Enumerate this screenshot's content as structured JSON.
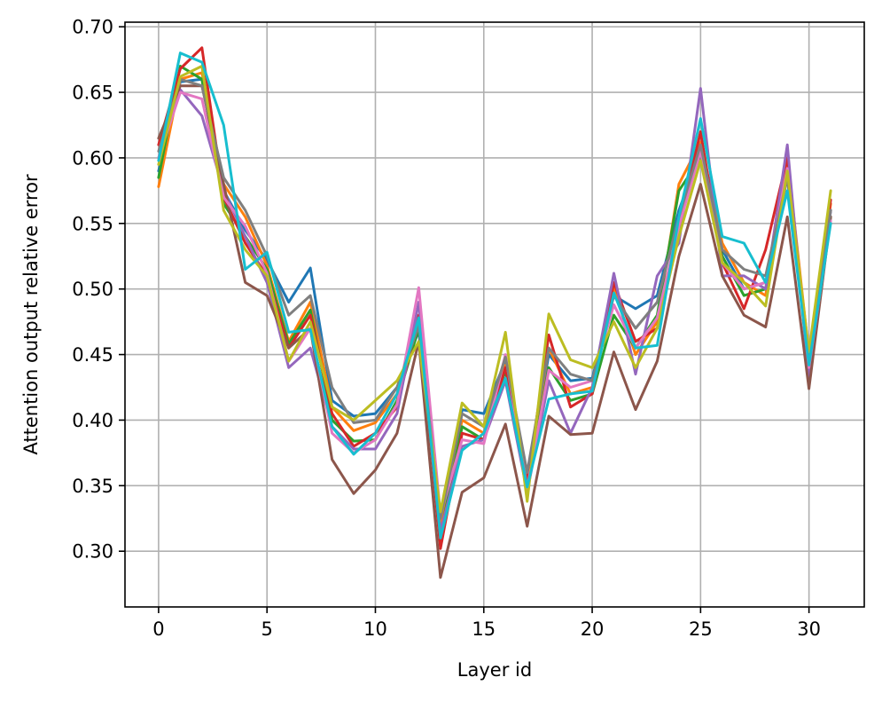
{
  "chart_data": {
    "type": "line",
    "title": "",
    "xlabel": "Layer id",
    "ylabel": "Attention output relative error",
    "xlim": [
      -1.55,
      32.55
    ],
    "ylim": [
      0.2575,
      0.7035
    ],
    "xticks": [
      0,
      5,
      10,
      15,
      20,
      25,
      30
    ],
    "yticks": [
      0.3,
      0.35,
      0.4,
      0.45,
      0.5,
      0.55,
      0.6,
      0.65,
      0.7
    ],
    "grid": true,
    "legend": "none",
    "x": [
      0,
      1,
      2,
      3,
      4,
      5,
      6,
      7,
      8,
      9,
      10,
      11,
      12,
      13,
      14,
      15,
      16,
      17,
      18,
      19,
      20,
      21,
      22,
      23,
      24,
      25,
      26,
      27,
      28,
      29,
      30,
      31
    ],
    "series": [
      {
        "color": "#1f77b4",
        "values": [
          0.59,
          0.658,
          0.66,
          0.575,
          0.545,
          0.522,
          0.49,
          0.516,
          0.415,
          0.403,
          0.405,
          0.425,
          0.468,
          0.318,
          0.408,
          0.405,
          0.445,
          0.355,
          0.45,
          0.43,
          0.432,
          0.495,
          0.485,
          0.495,
          0.56,
          0.605,
          0.53,
          0.5,
          0.505,
          0.585,
          0.445,
          0.56
        ]
      },
      {
        "color": "#ff7f0e",
        "values": [
          0.578,
          0.66,
          0.665,
          0.58,
          0.555,
          0.518,
          0.46,
          0.49,
          0.41,
          0.392,
          0.398,
          0.42,
          0.475,
          0.322,
          0.4,
          0.39,
          0.442,
          0.352,
          0.455,
          0.42,
          0.425,
          0.5,
          0.45,
          0.475,
          0.58,
          0.612,
          0.535,
          0.505,
          0.495,
          0.6,
          0.45,
          0.565
        ]
      },
      {
        "color": "#2ca02c",
        "values": [
          0.585,
          0.67,
          0.66,
          0.565,
          0.54,
          0.515,
          0.458,
          0.484,
          0.4,
          0.384,
          0.385,
          0.415,
          0.47,
          0.312,
          0.395,
          0.385,
          0.438,
          0.35,
          0.44,
          0.415,
          0.42,
          0.48,
          0.455,
          0.48,
          0.575,
          0.6,
          0.525,
          0.495,
          0.5,
          0.59,
          0.44,
          0.555
        ]
      },
      {
        "color": "#d62728",
        "values": [
          0.61,
          0.668,
          0.684,
          0.57,
          0.535,
          0.51,
          0.455,
          0.48,
          0.405,
          0.38,
          0.39,
          0.41,
          0.48,
          0.302,
          0.39,
          0.385,
          0.44,
          0.352,
          0.465,
          0.41,
          0.42,
          0.505,
          0.46,
          0.47,
          0.55,
          0.62,
          0.52,
          0.485,
          0.53,
          0.6,
          0.442,
          0.568
        ]
      },
      {
        "color": "#9467bd",
        "values": [
          0.6,
          0.652,
          0.632,
          0.575,
          0.54,
          0.505,
          0.44,
          0.455,
          0.395,
          0.378,
          0.378,
          0.405,
          0.49,
          0.315,
          0.38,
          0.385,
          0.43,
          0.345,
          0.43,
          0.39,
          0.425,
          0.512,
          0.435,
          0.51,
          0.535,
          0.653,
          0.51,
          0.51,
          0.5,
          0.61,
          0.43,
          0.56
        ]
      },
      {
        "color": "#8c564b",
        "values": [
          0.615,
          0.655,
          0.655,
          0.58,
          0.505,
          0.495,
          0.455,
          0.47,
          0.37,
          0.344,
          0.362,
          0.39,
          0.46,
          0.28,
          0.345,
          0.356,
          0.397,
          0.319,
          0.403,
          0.389,
          0.39,
          0.452,
          0.408,
          0.445,
          0.525,
          0.58,
          0.51,
          0.48,
          0.471,
          0.555,
          0.424,
          0.555
        ]
      },
      {
        "color": "#e377c2",
        "values": [
          0.6,
          0.65,
          0.645,
          0.57,
          0.548,
          0.512,
          0.445,
          0.47,
          0.39,
          0.375,
          0.385,
          0.412,
          0.501,
          0.328,
          0.385,
          0.382,
          0.45,
          0.348,
          0.438,
          0.425,
          0.43,
          0.488,
          0.455,
          0.478,
          0.548,
          0.605,
          0.52,
          0.5,
          0.505,
          0.592,
          0.44,
          0.552
        ]
      },
      {
        "color": "#7f7f7f",
        "values": [
          0.605,
          0.66,
          0.655,
          0.585,
          0.56,
          0.525,
          0.48,
          0.495,
          0.425,
          0.398,
          0.4,
          0.425,
          0.472,
          0.325,
          0.405,
          0.395,
          0.448,
          0.36,
          0.455,
          0.435,
          0.43,
          0.495,
          0.47,
          0.49,
          0.555,
          0.61,
          0.53,
          0.515,
          0.51,
          0.585,
          0.45,
          0.56
        ]
      },
      {
        "color": "#bcbd22",
        "values": [
          0.595,
          0.662,
          0.67,
          0.56,
          0.53,
          0.51,
          0.445,
          0.475,
          0.41,
          0.4,
          0.415,
          0.43,
          0.46,
          0.33,
          0.413,
          0.395,
          0.467,
          0.338,
          0.481,
          0.446,
          0.44,
          0.475,
          0.44,
          0.47,
          0.54,
          0.598,
          0.52,
          0.505,
          0.487,
          0.59,
          0.452,
          0.575
        ]
      },
      {
        "color": "#17becf",
        "values": [
          0.598,
          0.68,
          0.673,
          0.625,
          0.515,
          0.528,
          0.467,
          0.469,
          0.395,
          0.374,
          0.39,
          0.42,
          0.478,
          0.31,
          0.377,
          0.39,
          0.432,
          0.349,
          0.416,
          0.42,
          0.422,
          0.497,
          0.455,
          0.457,
          0.555,
          0.63,
          0.54,
          0.535,
          0.505,
          0.575,
          0.442,
          0.55
        ]
      }
    ]
  }
}
